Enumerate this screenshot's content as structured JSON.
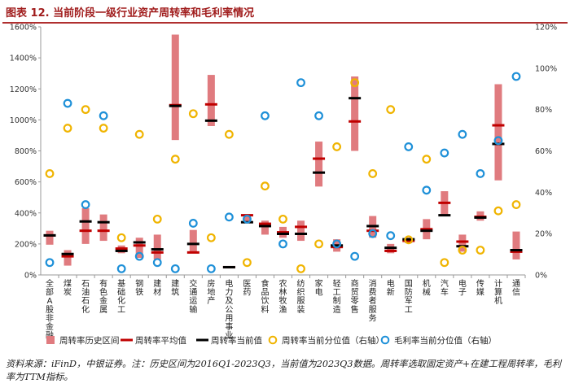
{
  "figure": {
    "title": "图表 12. 当前阶段一级行业资产周转率和毛利率情况",
    "source": "资料来源：iFinD，中银证券。注：历史区间为2016Q1-2023Q3，当前值为2023Q3数据。周转率选取固定资产+在建工程周转率，毛利率为TTM指标。"
  },
  "chart_data": {
    "type": "bar",
    "categories": [
      "全部A股非金融",
      "煤炭",
      "石油石化",
      "有色金属",
      "基础化工",
      "钢铁",
      "建材",
      "建筑",
      "交通运输",
      "房地产",
      "电力及公用事业",
      "医药",
      "食品饮料",
      "农林牧渔",
      "纺织服装",
      "家电",
      "轻工制造",
      "商贸零售",
      "消费者服务",
      "电新",
      "国防军工",
      "机械",
      "汽车",
      "电子",
      "传媒",
      "计算机",
      "通信"
    ],
    "y_left": {
      "min": 0,
      "max": 1600,
      "step": 200,
      "tick_labels": [
        "0%",
        "200%",
        "400%",
        "600%",
        "800%",
        "1000%",
        "1200%",
        "1400%",
        "1600%"
      ]
    },
    "y_right": {
      "min": 0,
      "max": 120,
      "step": 20,
      "tick_labels": [
        "0%",
        "20%",
        "40%",
        "60%",
        "80%",
        "100%",
        "120%"
      ]
    },
    "series": [
      {
        "name": "周转率历史区间",
        "kind": "range",
        "axis": "left",
        "color": "#e07b7f",
        "low": [
          195,
          60,
          200,
          220,
          140,
          110,
          100,
          870,
          140,
          960,
          45,
          340,
          260,
          240,
          220,
          570,
          150,
          800,
          240,
          140,
          205,
          230,
          380,
          150,
          350,
          610,
          100
        ],
        "high": [
          285,
          160,
          430,
          390,
          190,
          240,
          260,
          1550,
          290,
          1290,
          55,
          390,
          350,
          310,
          350,
          860,
          230,
          1280,
          380,
          200,
          240,
          360,
          540,
          260,
          410,
          1230,
          280
        ]
      },
      {
        "name": "周转率平均值",
        "kind": "marker",
        "axis": "left",
        "color": "#c00000",
        "values": [
          255,
          120,
          285,
          285,
          170,
          190,
          145,
          1095,
          145,
          1100,
          50,
          385,
          330,
          275,
          310,
          750,
          180,
          990,
          285,
          155,
          220,
          295,
          465,
          215,
          375,
          965,
          150
        ]
      },
      {
        "name": "周转率当前值",
        "kind": "marker",
        "axis": "left",
        "color": "#000000",
        "values": [
          255,
          135,
          345,
          340,
          155,
          210,
          165,
          1090,
          200,
          995,
          50,
          340,
          315,
          265,
          265,
          660,
          190,
          1140,
          315,
          175,
          230,
          285,
          385,
          185,
          370,
          845,
          160
        ]
      },
      {
        "name": "周转率当前分位值（右轴）",
        "kind": "circle",
        "axis": "right",
        "color": "#f0b400",
        "values": [
          49,
          71,
          80,
          71,
          18,
          68,
          27,
          56,
          78,
          18,
          68,
          6,
          43,
          27,
          3,
          15,
          62,
          93,
          49,
          80,
          17,
          56,
          6,
          12,
          12,
          31,
          34
        ]
      },
      {
        "name": "毛利率当前分位值（右轴）",
        "kind": "circle",
        "axis": "right",
        "color": "#1e90d8",
        "values": [
          6,
          83,
          34,
          77,
          3,
          9,
          6,
          3,
          25,
          3,
          28,
          27,
          77,
          15,
          93,
          77,
          15,
          9,
          20,
          19,
          62,
          41,
          59,
          68,
          49,
          65,
          96
        ]
      }
    ]
  }
}
